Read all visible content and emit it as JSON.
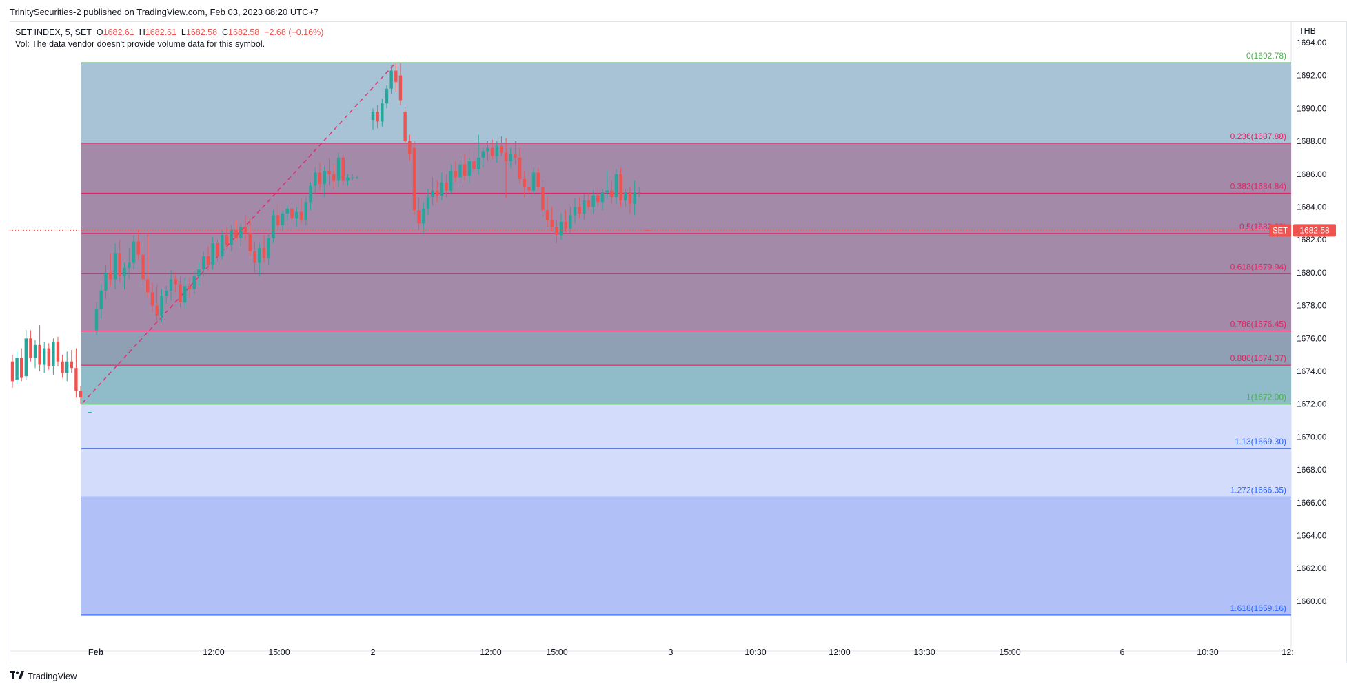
{
  "header": {
    "published": "TrinitySecurities-2 published on TradingView.com, Feb 03, 2023 08:20 UTC+7",
    "symbol": "SET INDEX, 5, SET",
    "ohlc": {
      "o_label": "O",
      "o": "1682.61",
      "h_label": "H",
      "h": "1682.61",
      "l_label": "L",
      "l": "1682.58",
      "c_label": "C",
      "c": "1682.58",
      "change": "−2.68 (−0.16%)"
    },
    "vol_note": "Vol: The data vendor doesn't provide volume data for this symbol.",
    "currency": "THB"
  },
  "footer": {
    "brand": "TradingView",
    "logo": "tradingview-logo-icon"
  },
  "colors": {
    "up": "#26a69a",
    "down": "#ef5350",
    "fib_red": "#e91e63",
    "fib_green": "#4caf50",
    "fib_blue": "#2962ff",
    "price_tag": "#ef5350"
  },
  "chart_data": {
    "type": "candlestick",
    "symbol": "SET INDEX",
    "interval": "5",
    "ylim": [
      1658,
      1695
    ],
    "y_ticks": [
      "1694.00",
      "1692.00",
      "1690.00",
      "1688.00",
      "1686.00",
      "1684.00",
      "1682.00",
      "1680.00",
      "1678.00",
      "1676.00",
      "1674.00",
      "1672.00",
      "1670.00",
      "1668.00",
      "1666.00",
      "1664.00",
      "1662.00",
      "1660.00"
    ],
    "x_ticks": [
      {
        "label": "Feb",
        "bold": true
      },
      {
        "label": "12:00"
      },
      {
        "label": "15:00"
      },
      {
        "label": "2"
      },
      {
        "label": "12:00"
      },
      {
        "label": "15:00"
      },
      {
        "label": "3"
      },
      {
        "label": "10:30"
      },
      {
        "label": "12:00"
      },
      {
        "label": "13:30"
      },
      {
        "label": "15:00"
      },
      {
        "label": "6"
      },
      {
        "label": "10:30"
      },
      {
        "label": "12:"
      }
    ],
    "last_price": {
      "symbol": "SET",
      "value": "1682.58"
    },
    "fib_levels": [
      {
        "ratio": "0",
        "price": 1692.78,
        "label": "0(1692.78)",
        "color": "#4caf50"
      },
      {
        "ratio": "0.236",
        "price": 1687.88,
        "label": "0.236(1687.88)",
        "color": "#e91e63"
      },
      {
        "ratio": "0.382",
        "price": 1684.84,
        "label": "0.382(1684.84)",
        "color": "#e91e63"
      },
      {
        "ratio": "0.5",
        "price": 1682.39,
        "label": "0.5(1682.39)",
        "color": "#e91e63"
      },
      {
        "ratio": "0.618",
        "price": 1679.94,
        "label": "0.618(1679.94)",
        "color": "#e91e63"
      },
      {
        "ratio": "0.786",
        "price": 1676.45,
        "label": "0.786(1676.45)",
        "color": "#e91e63"
      },
      {
        "ratio": "0.886",
        "price": 1674.37,
        "label": "0.886(1674.37)",
        "color": "#e91e63"
      },
      {
        "ratio": "1",
        "price": 1672.0,
        "label": "1(1672.00)",
        "color": "#4caf50"
      },
      {
        "ratio": "1.13",
        "price": 1669.3,
        "label": "1.13(1669.30)",
        "color": "#2962ff"
      },
      {
        "ratio": "1.272",
        "price": 1666.35,
        "label": "1.272(1666.35)",
        "color": "#2962ff"
      },
      {
        "ratio": "1.618",
        "price": 1659.16,
        "label": "1.618(1659.16)",
        "color": "#2962ff"
      }
    ],
    "fib_bands": [
      {
        "from": 1692.78,
        "to": 1687.88,
        "fill": "#a9c3d6"
      },
      {
        "from": 1687.88,
        "to": 1676.45,
        "fill": "#a28aa8"
      },
      {
        "from": 1676.45,
        "to": 1674.37,
        "fill": "#8fa0b5"
      },
      {
        "from": 1674.37,
        "to": 1672.0,
        "fill": "#8fbcc8"
      },
      {
        "from": 1672.0,
        "to": 1666.35,
        "fill": "#d3dcfb"
      },
      {
        "from": 1666.35,
        "to": 1659.16,
        "fill": "#b1c0f7"
      }
    ],
    "trend_line": {
      "from": 1672.0,
      "to": 1692.78
    },
    "candles": [
      {
        "o": 1674.6,
        "h": 1675.0,
        "l": 1673.0,
        "c": 1673.4
      },
      {
        "o": 1673.5,
        "h": 1675.2,
        "l": 1673.2,
        "c": 1674.8
      },
      {
        "o": 1674.8,
        "h": 1675.4,
        "l": 1673.4,
        "c": 1673.6
      },
      {
        "o": 1673.7,
        "h": 1676.5,
        "l": 1673.5,
        "c": 1676.0
      },
      {
        "o": 1676.0,
        "h": 1676.5,
        "l": 1674.6,
        "c": 1674.8
      },
      {
        "o": 1674.8,
        "h": 1675.9,
        "l": 1674.2,
        "c": 1675.6
      },
      {
        "o": 1675.6,
        "h": 1676.8,
        "l": 1674.0,
        "c": 1674.4
      },
      {
        "o": 1674.4,
        "h": 1675.8,
        "l": 1673.9,
        "c": 1675.4
      },
      {
        "o": 1675.4,
        "h": 1675.7,
        "l": 1674.1,
        "c": 1674.3
      },
      {
        "o": 1674.3,
        "h": 1676.0,
        "l": 1673.8,
        "c": 1675.8
      },
      {
        "o": 1675.8,
        "h": 1676.1,
        "l": 1674.3,
        "c": 1674.6
      },
      {
        "o": 1674.6,
        "h": 1675.0,
        "l": 1673.6,
        "c": 1673.9
      },
      {
        "o": 1673.9,
        "h": 1675.2,
        "l": 1673.4,
        "c": 1674.6
      },
      {
        "o": 1674.6,
        "h": 1675.3,
        "l": 1673.9,
        "c": 1674.2
      },
      {
        "o": 1674.2,
        "h": 1675.4,
        "l": 1672.4,
        "c": 1672.8
      },
      {
        "o": 1672.8,
        "h": 1673.1,
        "l": 1672.0,
        "c": 1672.4
      }
    ],
    "candles2": [
      {
        "o": 1676.5,
        "h": 1678.2,
        "l": 1676.2,
        "c": 1677.8
      },
      {
        "o": 1677.8,
        "h": 1679.3,
        "l": 1677.2,
        "c": 1678.9
      },
      {
        "o": 1678.9,
        "h": 1680.5,
        "l": 1678.4,
        "c": 1680.0
      },
      {
        "o": 1680.0,
        "h": 1681.2,
        "l": 1679.2,
        "c": 1679.6
      },
      {
        "o": 1679.6,
        "h": 1681.8,
        "l": 1679.0,
        "c": 1681.2
      },
      {
        "o": 1681.2,
        "h": 1682.0,
        "l": 1679.4,
        "c": 1679.8
      },
      {
        "o": 1679.8,
        "h": 1680.6,
        "l": 1679.0,
        "c": 1680.3
      },
      {
        "o": 1680.3,
        "h": 1681.5,
        "l": 1679.6,
        "c": 1680.6
      },
      {
        "o": 1680.6,
        "h": 1682.3,
        "l": 1680.2,
        "c": 1681.9
      },
      {
        "o": 1681.9,
        "h": 1682.6,
        "l": 1680.8,
        "c": 1681.1
      },
      {
        "o": 1681.1,
        "h": 1681.6,
        "l": 1679.2,
        "c": 1679.6
      },
      {
        "o": 1679.6,
        "h": 1682.4,
        "l": 1678.5,
        "c": 1678.8
      },
      {
        "o": 1678.8,
        "h": 1679.4,
        "l": 1677.6,
        "c": 1678.0
      },
      {
        "o": 1678.0,
        "h": 1679.3,
        "l": 1677.0,
        "c": 1677.4
      },
      {
        "o": 1677.4,
        "h": 1679.0,
        "l": 1677.0,
        "c": 1678.6
      },
      {
        "o": 1678.6,
        "h": 1679.2,
        "l": 1678.1,
        "c": 1678.9
      },
      {
        "o": 1678.9,
        "h": 1680.2,
        "l": 1678.3,
        "c": 1679.6
      },
      {
        "o": 1679.6,
        "h": 1680.0,
        "l": 1678.8,
        "c": 1679.3
      },
      {
        "o": 1679.3,
        "h": 1679.8,
        "l": 1677.9,
        "c": 1678.2
      },
      {
        "o": 1678.2,
        "h": 1679.7,
        "l": 1677.8,
        "c": 1679.2
      },
      {
        "o": 1679.2,
        "h": 1679.7,
        "l": 1678.5,
        "c": 1679.0
      },
      {
        "o": 1679.0,
        "h": 1680.1,
        "l": 1678.7,
        "c": 1679.8
      },
      {
        "o": 1679.8,
        "h": 1680.6,
        "l": 1679.2,
        "c": 1680.2
      },
      {
        "o": 1680.2,
        "h": 1681.3,
        "l": 1679.8,
        "c": 1681.0
      },
      {
        "o": 1681.0,
        "h": 1681.6,
        "l": 1680.1,
        "c": 1680.5
      },
      {
        "o": 1680.5,
        "h": 1682.2,
        "l": 1680.2,
        "c": 1681.8
      },
      {
        "o": 1681.8,
        "h": 1682.0,
        "l": 1680.7,
        "c": 1681.0
      },
      {
        "o": 1681.0,
        "h": 1682.6,
        "l": 1680.8,
        "c": 1682.3
      },
      {
        "o": 1682.3,
        "h": 1682.8,
        "l": 1681.4,
        "c": 1681.7
      },
      {
        "o": 1681.7,
        "h": 1682.9,
        "l": 1681.3,
        "c": 1682.6
      },
      {
        "o": 1682.6,
        "h": 1683.2,
        "l": 1681.9,
        "c": 1682.1
      },
      {
        "o": 1682.1,
        "h": 1683.0,
        "l": 1681.6,
        "c": 1682.8
      },
      {
        "o": 1682.8,
        "h": 1683.5,
        "l": 1682.0,
        "c": 1682.4
      },
      {
        "o": 1682.4,
        "h": 1683.3,
        "l": 1681.0,
        "c": 1681.3
      },
      {
        "o": 1681.3,
        "h": 1681.9,
        "l": 1680.0,
        "c": 1680.6
      },
      {
        "o": 1680.6,
        "h": 1681.8,
        "l": 1679.8,
        "c": 1681.5
      },
      {
        "o": 1681.5,
        "h": 1682.3,
        "l": 1680.6,
        "c": 1680.9
      },
      {
        "o": 1680.9,
        "h": 1682.4,
        "l": 1680.5,
        "c": 1682.1
      },
      {
        "o": 1682.1,
        "h": 1683.8,
        "l": 1681.8,
        "c": 1683.5
      },
      {
        "o": 1683.5,
        "h": 1684.2,
        "l": 1682.6,
        "c": 1682.9
      },
      {
        "o": 1682.9,
        "h": 1683.8,
        "l": 1682.5,
        "c": 1683.6
      },
      {
        "o": 1683.6,
        "h": 1684.1,
        "l": 1683.2,
        "c": 1683.9
      },
      {
        "o": 1683.9,
        "h": 1684.3,
        "l": 1683.0,
        "c": 1683.3
      },
      {
        "o": 1683.3,
        "h": 1684.0,
        "l": 1682.8,
        "c": 1683.7
      },
      {
        "o": 1683.7,
        "h": 1684.5,
        "l": 1683.0,
        "c": 1683.2
      },
      {
        "o": 1683.2,
        "h": 1684.6,
        "l": 1682.9,
        "c": 1684.3
      },
      {
        "o": 1684.3,
        "h": 1685.5,
        "l": 1683.8,
        "c": 1685.3
      },
      {
        "o": 1685.3,
        "h": 1686.4,
        "l": 1684.8,
        "c": 1686.1
      },
      {
        "o": 1686.1,
        "h": 1686.7,
        "l": 1685.0,
        "c": 1685.4
      },
      {
        "o": 1685.4,
        "h": 1686.5,
        "l": 1684.6,
        "c": 1686.2
      },
      {
        "o": 1686.2,
        "h": 1687.0,
        "l": 1685.3,
        "c": 1686.0
      },
      {
        "o": 1686.0,
        "h": 1686.6,
        "l": 1685.1,
        "c": 1685.6
      },
      {
        "o": 1685.6,
        "h": 1687.3,
        "l": 1685.2,
        "c": 1687.0
      },
      {
        "o": 1687.0,
        "h": 1687.2,
        "l": 1685.3,
        "c": 1685.6
      },
      {
        "o": 1685.6,
        "h": 1686.0,
        "l": 1685.3,
        "c": 1685.8
      },
      {
        "o": 1685.8,
        "h": 1686.0,
        "l": 1685.6,
        "c": 1685.8
      },
      {
        "o": 1685.8,
        "h": 1685.9,
        "l": 1685.7,
        "c": 1685.8
      }
    ],
    "candles3": [
      {
        "o": 1689.3,
        "h": 1690.0,
        "l": 1688.7,
        "c": 1689.8
      },
      {
        "o": 1689.8,
        "h": 1690.2,
        "l": 1688.8,
        "c": 1689.2
      },
      {
        "o": 1689.2,
        "h": 1690.6,
        "l": 1688.9,
        "c": 1690.3
      },
      {
        "o": 1690.3,
        "h": 1691.4,
        "l": 1690.0,
        "c": 1691.2
      },
      {
        "o": 1691.2,
        "h": 1692.6,
        "l": 1690.9,
        "c": 1692.3
      },
      {
        "o": 1692.3,
        "h": 1692.78,
        "l": 1691.0,
        "c": 1691.6
      },
      {
        "o": 1692.0,
        "h": 1692.78,
        "l": 1690.2,
        "c": 1690.5
      },
      {
        "o": 1689.8,
        "h": 1690.1,
        "l": 1687.6,
        "c": 1688.0
      },
      {
        "o": 1688.0,
        "h": 1688.4,
        "l": 1686.8,
        "c": 1687.2
      },
      {
        "o": 1687.6,
        "h": 1688.0,
        "l": 1683.5,
        "c": 1683.8
      },
      {
        "o": 1683.8,
        "h": 1684.6,
        "l": 1682.6,
        "c": 1683.0
      },
      {
        "o": 1683.0,
        "h": 1684.3,
        "l": 1682.4,
        "c": 1683.9
      },
      {
        "o": 1683.9,
        "h": 1685.1,
        "l": 1683.5,
        "c": 1684.6
      },
      {
        "o": 1684.6,
        "h": 1685.8,
        "l": 1684.1,
        "c": 1685.0
      },
      {
        "o": 1685.0,
        "h": 1685.6,
        "l": 1684.3,
        "c": 1684.7
      },
      {
        "o": 1684.7,
        "h": 1686.1,
        "l": 1684.4,
        "c": 1685.5
      },
      {
        "o": 1685.5,
        "h": 1686.0,
        "l": 1684.6,
        "c": 1685.0
      },
      {
        "o": 1685.0,
        "h": 1686.6,
        "l": 1684.8,
        "c": 1686.2
      },
      {
        "o": 1686.2,
        "h": 1686.8,
        "l": 1685.5,
        "c": 1685.8
      },
      {
        "o": 1685.8,
        "h": 1687.1,
        "l": 1685.4,
        "c": 1686.6
      },
      {
        "o": 1686.6,
        "h": 1687.2,
        "l": 1685.6,
        "c": 1685.9
      },
      {
        "o": 1685.9,
        "h": 1687.0,
        "l": 1685.5,
        "c": 1686.8
      },
      {
        "o": 1686.8,
        "h": 1687.4,
        "l": 1686.0,
        "c": 1686.3
      },
      {
        "o": 1686.3,
        "h": 1688.4,
        "l": 1686.0,
        "c": 1687.0
      },
      {
        "o": 1687.0,
        "h": 1687.6,
        "l": 1686.4,
        "c": 1687.4
      },
      {
        "o": 1687.4,
        "h": 1688.0,
        "l": 1686.8,
        "c": 1687.6
      },
      {
        "o": 1687.6,
        "h": 1688.1,
        "l": 1686.9,
        "c": 1687.1
      },
      {
        "o": 1687.1,
        "h": 1688.0,
        "l": 1686.7,
        "c": 1687.7
      },
      {
        "o": 1687.7,
        "h": 1688.3,
        "l": 1687.1,
        "c": 1687.3
      },
      {
        "o": 1687.3,
        "h": 1688.2,
        "l": 1684.5,
        "c": 1686.8
      },
      {
        "o": 1686.8,
        "h": 1687.6,
        "l": 1686.4,
        "c": 1687.2
      },
      {
        "o": 1687.2,
        "h": 1688.0,
        "l": 1686.6,
        "c": 1687.0
      },
      {
        "o": 1687.0,
        "h": 1687.6,
        "l": 1685.4,
        "c": 1685.7
      },
      {
        "o": 1685.7,
        "h": 1686.2,
        "l": 1684.6,
        "c": 1685.2
      },
      {
        "o": 1685.2,
        "h": 1686.2,
        "l": 1684.8,
        "c": 1685.0
      },
      {
        "o": 1685.0,
        "h": 1686.4,
        "l": 1684.8,
        "c": 1686.1
      },
      {
        "o": 1686.1,
        "h": 1686.4,
        "l": 1685.0,
        "c": 1685.2
      },
      {
        "o": 1685.2,
        "h": 1685.6,
        "l": 1683.4,
        "c": 1683.8
      },
      {
        "o": 1683.8,
        "h": 1684.6,
        "l": 1682.8,
        "c": 1683.2
      },
      {
        "o": 1683.2,
        "h": 1684.0,
        "l": 1682.5,
        "c": 1682.8
      },
      {
        "o": 1682.8,
        "h": 1683.2,
        "l": 1681.8,
        "c": 1682.3
      },
      {
        "o": 1682.3,
        "h": 1683.6,
        "l": 1682.0,
        "c": 1683.1
      },
      {
        "o": 1683.1,
        "h": 1683.8,
        "l": 1682.4,
        "c": 1682.7
      },
      {
        "o": 1682.7,
        "h": 1684.0,
        "l": 1682.4,
        "c": 1683.5
      },
      {
        "o": 1683.5,
        "h": 1684.5,
        "l": 1683.0,
        "c": 1684.0
      },
      {
        "o": 1684.0,
        "h": 1684.6,
        "l": 1683.3,
        "c": 1683.6
      },
      {
        "o": 1683.6,
        "h": 1684.8,
        "l": 1683.2,
        "c": 1684.4
      },
      {
        "o": 1684.4,
        "h": 1684.9,
        "l": 1683.8,
        "c": 1684.0
      },
      {
        "o": 1684.0,
        "h": 1685.0,
        "l": 1683.6,
        "c": 1684.7
      },
      {
        "o": 1684.7,
        "h": 1685.2,
        "l": 1684.0,
        "c": 1684.3
      },
      {
        "o": 1684.3,
        "h": 1685.1,
        "l": 1683.8,
        "c": 1684.9
      },
      {
        "o": 1684.9,
        "h": 1686.2,
        "l": 1684.5,
        "c": 1685.0
      },
      {
        "o": 1685.0,
        "h": 1685.6,
        "l": 1684.2,
        "c": 1684.6
      },
      {
        "o": 1684.6,
        "h": 1686.3,
        "l": 1684.2,
        "c": 1686.0
      },
      {
        "o": 1686.0,
        "h": 1686.4,
        "l": 1684.0,
        "c": 1684.4
      },
      {
        "o": 1684.4,
        "h": 1685.1,
        "l": 1684.0,
        "c": 1684.9
      },
      {
        "o": 1684.9,
        "h": 1685.2,
        "l": 1683.6,
        "c": 1684.2
      },
      {
        "o": 1684.2,
        "h": 1685.6,
        "l": 1683.5,
        "c": 1684.9
      },
      {
        "o": 1684.9,
        "h": 1685.2,
        "l": 1684.6,
        "c": 1684.9
      }
    ]
  }
}
